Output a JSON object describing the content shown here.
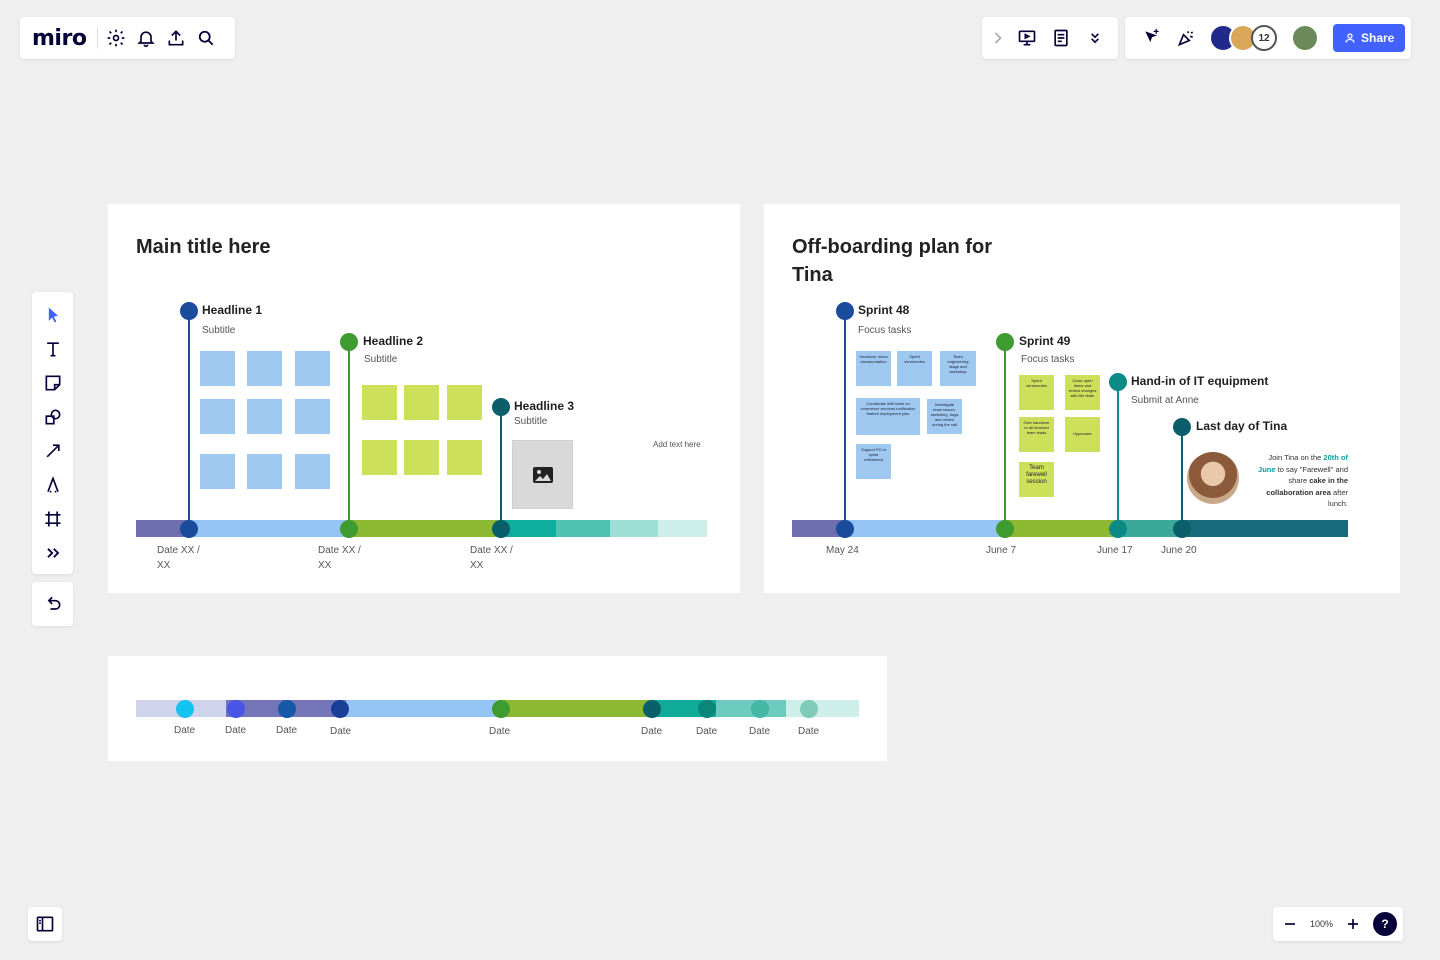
{
  "app": {
    "logo": "miro",
    "share_label": "Share",
    "collaborator_count": "12",
    "zoom": "100%",
    "help": "?"
  },
  "colors": {
    "accent": "#4262ff",
    "blue_dot": "#1a4b9c",
    "green_dot": "#3d9b2f",
    "teal_dot": "#0b5f6a",
    "sticky_blue": "#9ec8f0",
    "sticky_green": "#cde05a"
  },
  "frame1": {
    "title": "Main title here",
    "milestones": [
      {
        "headline": "Headline 1",
        "subtitle": "Subtitle",
        "date": "Date XX /",
        "date2": "XX"
      },
      {
        "headline": "Headline 2",
        "subtitle": "Subtitle",
        "date": "Date XX /",
        "date2": "XX"
      },
      {
        "headline": "Headline 3",
        "subtitle": "Subtitle",
        "date": "Date XX /",
        "date2": "XX"
      }
    ],
    "note": "Add text here"
  },
  "frame2": {
    "title_line1": "Off-boarding plan for",
    "title_line2": "Tina",
    "milestones": [
      {
        "headline": "Sprint 48",
        "subtitle": "Focus tasks",
        "date": "May 24"
      },
      {
        "headline": "Sprint 49",
        "subtitle": "Focus tasks",
        "date": "June 7"
      },
      {
        "headline": "Hand-in of IT equipment",
        "subtitle": "Submit at Anne",
        "date": "June 17"
      },
      {
        "headline": "Last day of Tina",
        "subtitle": "",
        "date": "June 20"
      }
    ],
    "stickies_blue": [
      "Handover notes documentation",
      "Sprint ceremonies",
      "Team engineering stage and workshop",
      "Coordinate with team on commerce services notification feature deployment plan",
      "Investigate team issues, sketching, bugs and review during the call",
      "Support PO in sprint refinement"
    ],
    "stickies_green": [
      "Sprint ceremonies",
      "Close open items and review changes with the team",
      "Give handover to all involved team leads",
      "Hypercare",
      "Team farewell session"
    ],
    "farewell": {
      "t1": "Join Tina on the ",
      "t2": "20th of",
      "t3": "June",
      "t4": " to say \"Farewell\" and",
      "t5": "share ",
      "t6": "cake in the",
      "t7": "collaboration area",
      "t8": " after",
      "t9": "lunch."
    }
  },
  "frame3": {
    "dates": [
      "Date",
      "Date",
      "Date",
      "Date",
      "Date",
      "Date",
      "Date",
      "Date",
      "Date"
    ]
  }
}
